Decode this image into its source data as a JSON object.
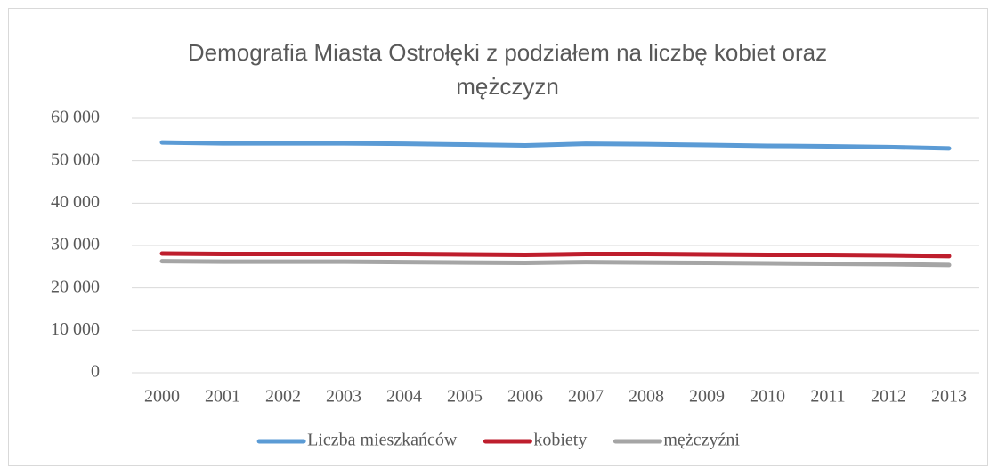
{
  "chart_data": {
    "type": "line",
    "title": "Demografia Miasta Ostrołęki z podziałem na liczbę kobiet oraz mężczyzn",
    "categories": [
      "2000",
      "2001",
      "2002",
      "2003",
      "2004",
      "2005",
      "2006",
      "2007",
      "2008",
      "2009",
      "2010",
      "2011",
      "2012",
      "2013"
    ],
    "series": [
      {
        "name": "Liczba mieszkańców",
        "color": "#5b9bd5",
        "values": [
          54300,
          54100,
          54100,
          54100,
          54000,
          53800,
          53600,
          54000,
          53900,
          53700,
          53500,
          53400,
          53200,
          52900
        ]
      },
      {
        "name": "kobiety",
        "color": "#be1e2d",
        "values": [
          28100,
          28000,
          28000,
          28000,
          28000,
          27900,
          27800,
          28000,
          28000,
          27900,
          27800,
          27800,
          27700,
          27500
        ]
      },
      {
        "name": "mężczyźni",
        "color": "#a5a5a5",
        "values": [
          26300,
          26200,
          26200,
          26200,
          26100,
          26000,
          25900,
          26100,
          26000,
          25900,
          25800,
          25700,
          25600,
          25400
        ]
      }
    ],
    "ylim": [
      0,
      60000
    ],
    "yticks": [
      0,
      {
        "value": 10000,
        "label": "10 000"
      },
      {
        "value": 20000,
        "label": "20 000"
      },
      {
        "value": 30000,
        "label": "30 000"
      },
      {
        "value": 40000,
        "label": "40 000"
      },
      {
        "value": 50000,
        "label": "50 000"
      },
      {
        "value": 60000,
        "label": "60 000"
      }
    ],
    "grid": true,
    "legend": "bottom"
  }
}
